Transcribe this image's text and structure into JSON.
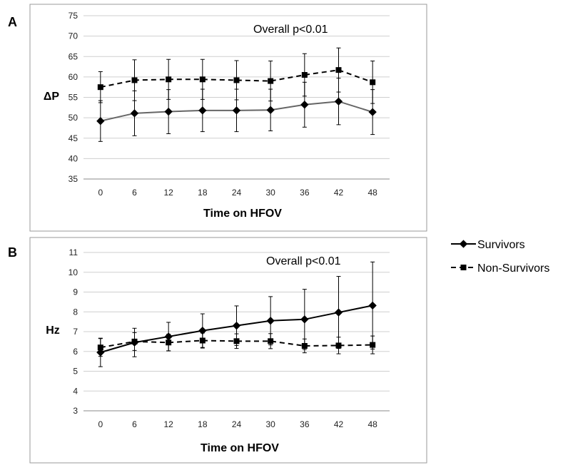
{
  "legend": {
    "items": [
      {
        "label": "Survivors",
        "style": "solid",
        "marker": "diamond"
      },
      {
        "label": "Non-Survivors",
        "style": "dashed",
        "marker": "square"
      }
    ]
  },
  "chart_data": [
    {
      "type": "line",
      "panel": "A",
      "title": "",
      "annotation": "Overall p<0.01",
      "xlabel": "Time on HFOV",
      "ylabel": "ΔP",
      "categories": [
        "0",
        "6",
        "12",
        "18",
        "24",
        "30",
        "36",
        "42",
        "48"
      ],
      "ylim": [
        35,
        75
      ],
      "yticks": [
        35,
        40,
        45,
        50,
        55,
        60,
        65,
        70,
        75
      ],
      "grid": true,
      "series": [
        {
          "name": "Survivors",
          "style": "solid",
          "marker": "diamond",
          "color": "#666666",
          "values": [
            49.2,
            51.1,
            51.5,
            51.8,
            51.8,
            51.9,
            53.2,
            54.0,
            51.4
          ],
          "err": [
            5.0,
            5.5,
            5.4,
            5.2,
            5.2,
            5.1,
            5.5,
            5.7,
            5.5
          ]
        },
        {
          "name": "Non-Survivors",
          "style": "dashed",
          "marker": "square",
          "color": "#000000",
          "values": [
            57.5,
            59.2,
            59.4,
            59.4,
            59.2,
            59.0,
            60.5,
            61.7,
            58.7
          ],
          "err": [
            3.8,
            5.0,
            4.9,
            4.9,
            4.8,
            4.9,
            5.2,
            5.4,
            5.2
          ]
        }
      ]
    },
    {
      "type": "line",
      "panel": "B",
      "title": "",
      "annotation": "Overall p<0.01",
      "xlabel": "Time on HFOV",
      "ylabel": "Hz",
      "categories": [
        "0",
        "6",
        "12",
        "18",
        "24",
        "30",
        "36",
        "42",
        "48"
      ],
      "ylim": [
        3,
        11
      ],
      "yticks": [
        3,
        4,
        5,
        6,
        7,
        8,
        9,
        10,
        11
      ],
      "grid": true,
      "series": [
        {
          "name": "Survivors",
          "style": "solid",
          "marker": "diamond",
          "color": "#000000",
          "values": [
            5.95,
            6.45,
            6.75,
            7.05,
            7.3,
            7.55,
            7.62,
            7.97,
            8.32
          ],
          "err": [
            0.72,
            0.72,
            0.72,
            0.85,
            1.0,
            1.22,
            1.52,
            1.82,
            2.2
          ]
        },
        {
          "name": "Non-Survivors",
          "style": "dashed",
          "marker": "square",
          "color": "#000000",
          "values": [
            6.2,
            6.5,
            6.45,
            6.55,
            6.52,
            6.52,
            6.28,
            6.3,
            6.33
          ],
          "err": [
            0.45,
            0.45,
            0.42,
            0.38,
            0.37,
            0.38,
            0.35,
            0.42,
            0.45
          ]
        }
      ]
    }
  ]
}
